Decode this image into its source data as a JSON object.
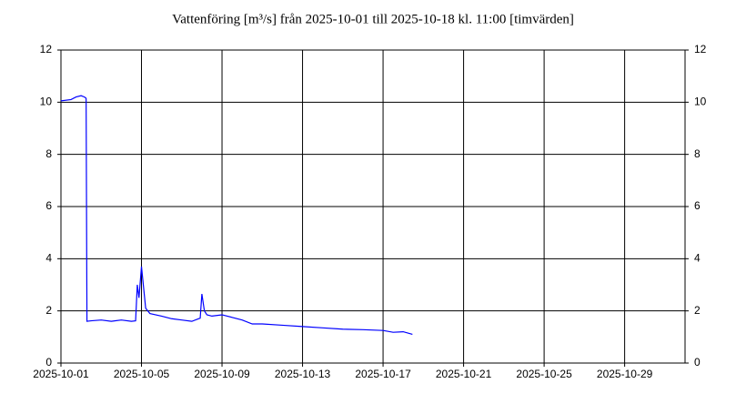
{
  "chart_data": {
    "type": "line",
    "title": "Vattenföring [m³/s] från 2025-10-01 till 2025-10-18 kl. 11:00 [timvärden]",
    "x": [
      "2025-10-01T00:00",
      "2025-10-01T12:00",
      "2025-10-01T18:00",
      "2025-10-02T00:00",
      "2025-10-02T04:00",
      "2025-10-02T06:00",
      "2025-10-02T07:00",
      "2025-10-02T12:00",
      "2025-10-03T00:00",
      "2025-10-03T12:00",
      "2025-10-04T00:00",
      "2025-10-04T12:00",
      "2025-10-04T17:00",
      "2025-10-04T19:00",
      "2025-10-04T21:00",
      "2025-10-05T00:00",
      "2025-10-05T05:00",
      "2025-10-05T10:00",
      "2025-10-06T00:00",
      "2025-10-06T12:00",
      "2025-10-07T00:00",
      "2025-10-07T12:00",
      "2025-10-07T20:00",
      "2025-10-07T22:00",
      "2025-10-08T00:00",
      "2025-10-08T03:00",
      "2025-10-08T06:00",
      "2025-10-08T12:00",
      "2025-10-09T00:00",
      "2025-10-09T12:00",
      "2025-10-10T00:00",
      "2025-10-10T12:00",
      "2025-10-11T00:00",
      "2025-10-12T00:00",
      "2025-10-13T00:00",
      "2025-10-14T00:00",
      "2025-10-15T00:00",
      "2025-10-16T00:00",
      "2025-10-17T00:00",
      "2025-10-17T12:00",
      "2025-10-18T00:00",
      "2025-10-18T11:00"
    ],
    "series": [
      {
        "name": "Vattenföring",
        "color": "#0000ff",
        "values": [
          10.05,
          10.1,
          10.2,
          10.25,
          10.2,
          10.15,
          1.6,
          1.62,
          1.65,
          1.6,
          1.65,
          1.6,
          1.62,
          3.0,
          2.5,
          3.7,
          2.1,
          1.9,
          1.8,
          1.7,
          1.65,
          1.6,
          1.7,
          1.72,
          2.65,
          2.0,
          1.85,
          1.8,
          1.85,
          1.75,
          1.65,
          1.5,
          1.5,
          1.45,
          1.4,
          1.35,
          1.3,
          1.28,
          1.25,
          1.18,
          1.2,
          1.1
        ]
      }
    ],
    "xlim": [
      "2025-10-01",
      "2025-11-01"
    ],
    "xticks": [
      "2025-10-01",
      "2025-10-05",
      "2025-10-09",
      "2025-10-13",
      "2025-10-17",
      "2025-10-21",
      "2025-10-25",
      "2025-10-29"
    ],
    "ylim": [
      0,
      12
    ],
    "yticks": [
      0,
      2,
      4,
      6,
      8,
      10,
      12
    ],
    "y2lim": [
      0,
      12
    ],
    "y2ticks": [
      0,
      2,
      4,
      6,
      8,
      10,
      12
    ],
    "grid": true
  }
}
